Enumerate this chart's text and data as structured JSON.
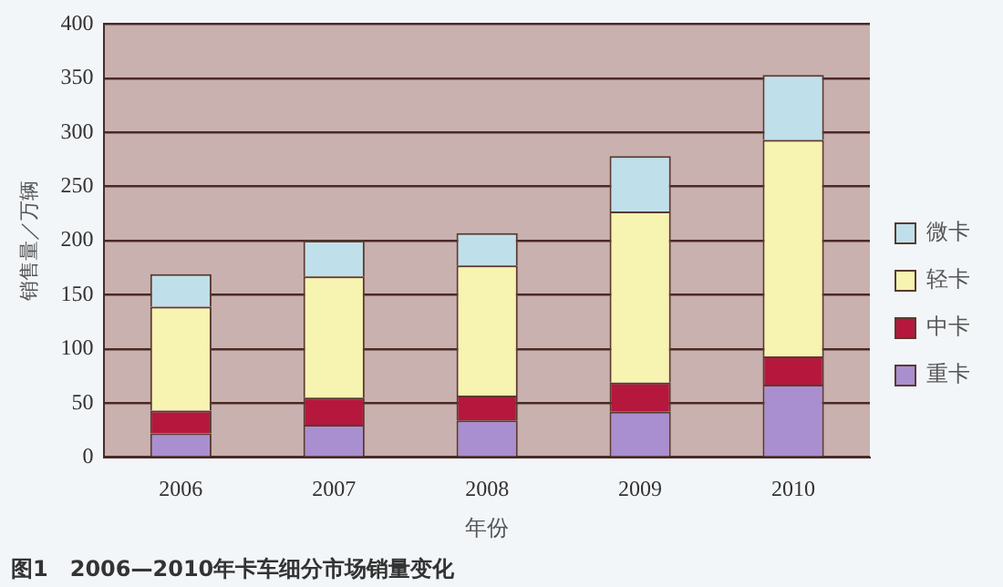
{
  "chart_data": {
    "type": "bar",
    "stacked": true,
    "title": "图1　2006—2010年卡车细分市场销量变化",
    "xlabel": "年份",
    "ylabel": "销售量／万辆",
    "categories": [
      "2006",
      "2007",
      "2008",
      "2009",
      "2010"
    ],
    "series": [
      {
        "name": "重卡",
        "color": "#a98fd0",
        "values": [
          22,
          30,
          34,
          42,
          67
        ]
      },
      {
        "name": "中卡",
        "color": "#b5173d",
        "values": [
          21,
          25,
          23,
          27,
          26
        ]
      },
      {
        "name": "轻卡",
        "color": "#f7f3b0",
        "values": [
          96,
          112,
          120,
          158,
          200
        ]
      },
      {
        "name": "微卡",
        "color": "#bfe0ea",
        "values": [
          30,
          33,
          30,
          51,
          60
        ]
      }
    ],
    "ylim": [
      0,
      400
    ],
    "yticks": [
      0,
      50,
      100,
      150,
      200,
      250,
      300,
      350,
      400
    ],
    "grid": "y",
    "legend": "right"
  }
}
